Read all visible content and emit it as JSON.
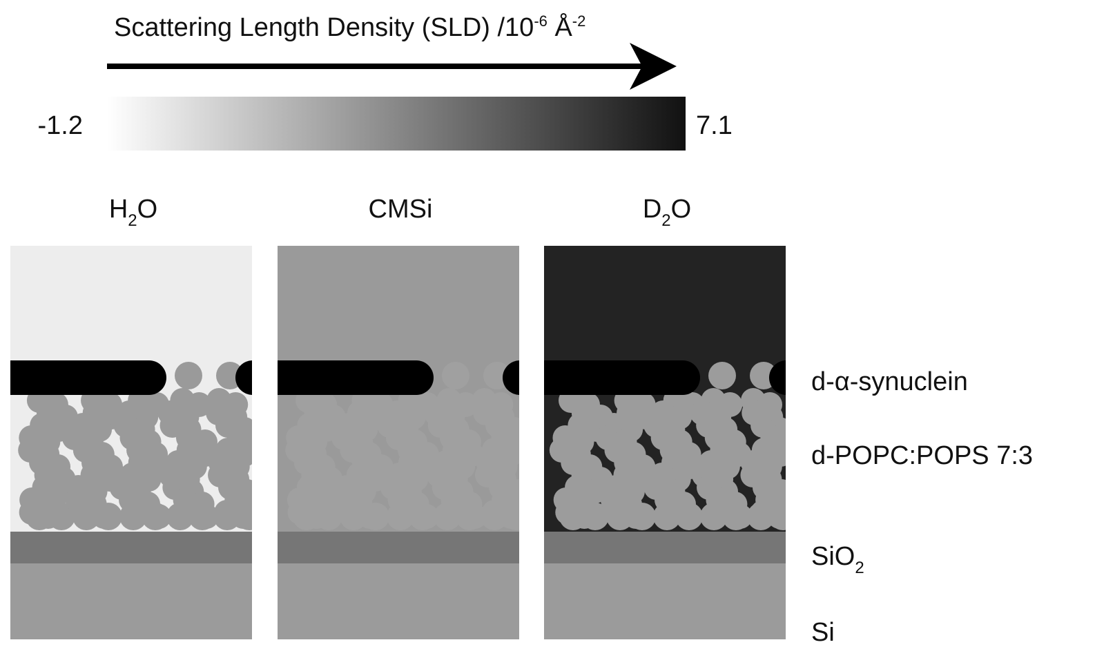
{
  "scale": {
    "title": {
      "text": "Scattering Length Density (SLD) /10",
      "exponent": "-6",
      "unit": " Å",
      "unit_exponent": "-2"
    },
    "min": -1.2,
    "max": 7.1
  },
  "panels": [
    {
      "label": {
        "base": "H",
        "sub": "2",
        "rest": "O"
      }
    },
    {
      "label": {
        "base": "CMSi"
      }
    },
    {
      "label": {
        "base": "D",
        "sub": "2",
        "rest": "O"
      }
    }
  ],
  "layers": [
    {
      "label": {
        "base": "d-α-synuclein"
      }
    },
    {
      "label": {
        "base": "d-POPC:POPS 7:3"
      }
    },
    {
      "label": {
        "base": "SiO",
        "sub": "2"
      }
    },
    {
      "label": {
        "base": "Si"
      }
    }
  ]
}
